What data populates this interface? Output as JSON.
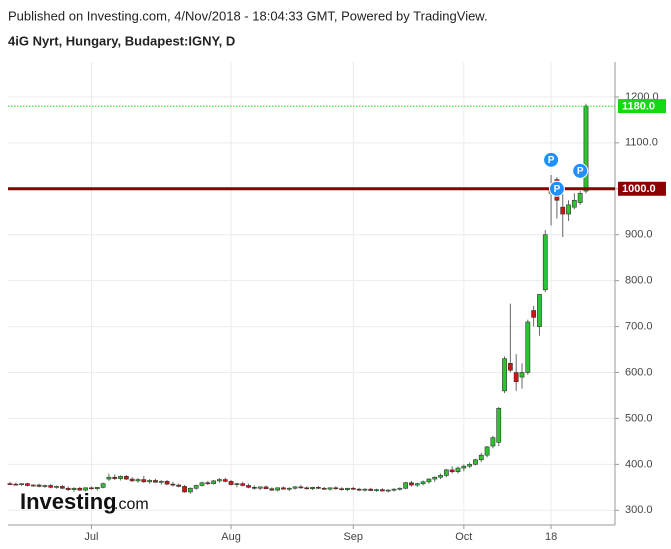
{
  "chart_data": {
    "type": "candlestick",
    "header": "Published on Investing.com, 4/Nov/2018 - 18:04:33 GMT, Powered by TradingView.",
    "title": "4iG Nyrt, Hungary, Budapest:IGNY, D",
    "logo": {
      "main": "Investing",
      "suffix": ".com"
    },
    "up_color": "#2fc12f",
    "down_color": "#d01414",
    "ylim": [
      268,
      1276
    ],
    "yticks": [
      {
        "value": 300,
        "label": "300.0"
      },
      {
        "value": 400,
        "label": "400.0"
      },
      {
        "value": 500,
        "label": "500.0"
      },
      {
        "value": 600,
        "label": "600.0"
      },
      {
        "value": 700,
        "label": "700.0"
      },
      {
        "value": 800,
        "label": "800.0"
      },
      {
        "value": 900,
        "label": "900.0"
      },
      {
        "value": 1000,
        "label": "1000.0"
      },
      {
        "value": 1100,
        "label": "1100.0"
      },
      {
        "value": 1200,
        "label": "1200.0"
      }
    ],
    "grid": true,
    "lines": [
      {
        "value": 1180,
        "label": "1180.0",
        "color": "#12d912",
        "style": "dotted"
      },
      {
        "value": 1000,
        "label": "1000.0",
        "color": "#8b0000",
        "style": "solid"
      }
    ],
    "markers": [
      {
        "label": "P",
        "candle": 93,
        "value": 1063
      },
      {
        "label": "P",
        "candle": 94,
        "value": 1000
      },
      {
        "label": "P",
        "candle": 98,
        "value": 1039
      }
    ],
    "categories": [
      null,
      null,
      null,
      null,
      null,
      null,
      null,
      null,
      null,
      null,
      null,
      null,
      null,
      null,
      "Jul",
      null,
      null,
      null,
      null,
      null,
      null,
      null,
      null,
      null,
      null,
      null,
      null,
      null,
      null,
      null,
      null,
      null,
      null,
      null,
      null,
      null,
      null,
      null,
      "Aug",
      null,
      null,
      null,
      null,
      null,
      null,
      null,
      null,
      null,
      null,
      null,
      null,
      null,
      null,
      null,
      null,
      null,
      null,
      null,
      null,
      "Sep",
      null,
      null,
      null,
      null,
      null,
      null,
      null,
      null,
      null,
      null,
      null,
      null,
      null,
      null,
      null,
      null,
      null,
      null,
      "Oct",
      null,
      null,
      null,
      null,
      null,
      null,
      null,
      null,
      null,
      null,
      null,
      null,
      null,
      null,
      "18",
      null,
      null,
      null,
      null,
      null,
      null,
      null
    ],
    "candles": [
      [
        358,
        362,
        355,
        357
      ],
      [
        357,
        360,
        354,
        356
      ],
      [
        356,
        359,
        353,
        358
      ],
      [
        358,
        360,
        352,
        354
      ],
      [
        354,
        357,
        351,
        355
      ],
      [
        355,
        358,
        350,
        352
      ],
      [
        352,
        356,
        349,
        354
      ],
      [
        354,
        357,
        348,
        350
      ],
      [
        350,
        354,
        347,
        352
      ],
      [
        352,
        355,
        346,
        348
      ],
      [
        348,
        352,
        342,
        345
      ],
      [
        345,
        350,
        340,
        348
      ],
      [
        348,
        351,
        342,
        344
      ],
      [
        344,
        350,
        341,
        349
      ],
      [
        349,
        352,
        345,
        347
      ],
      [
        347,
        351,
        343,
        350
      ],
      [
        350,
        360,
        348,
        358
      ],
      [
        368,
        380,
        364,
        372
      ],
      [
        372,
        378,
        366,
        369
      ],
      [
        369,
        376,
        365,
        374
      ],
      [
        374,
        377,
        366,
        368
      ],
      [
        368,
        372,
        362,
        364
      ],
      [
        364,
        370,
        360,
        367
      ],
      [
        367,
        375,
        360,
        362
      ],
      [
        362,
        368,
        358,
        365
      ],
      [
        365,
        369,
        360,
        361
      ],
      [
        361,
        366,
        356,
        363
      ],
      [
        363,
        366,
        355,
        357
      ],
      [
        357,
        362,
        352,
        355
      ],
      [
        355,
        358,
        350,
        352
      ],
      [
        352,
        355,
        338,
        340
      ],
      [
        340,
        350,
        336,
        348
      ],
      [
        348,
        356,
        345,
        354
      ],
      [
        354,
        362,
        352,
        360
      ],
      [
        360,
        364,
        355,
        358
      ],
      [
        358,
        366,
        356,
        364
      ],
      [
        364,
        370,
        360,
        367
      ],
      [
        367,
        371,
        361,
        363
      ],
      [
        363,
        366,
        354,
        356
      ],
      [
        356,
        360,
        350,
        358
      ],
      [
        358,
        362,
        352,
        354
      ],
      [
        354,
        358,
        348,
        350
      ],
      [
        350,
        354,
        345,
        348
      ],
      [
        348,
        352,
        344,
        351
      ],
      [
        351,
        354,
        346,
        347
      ],
      [
        347,
        350,
        342,
        344
      ],
      [
        344,
        350,
        341,
        349
      ],
      [
        349,
        352,
        345,
        346
      ],
      [
        346,
        350,
        342,
        348
      ],
      [
        348,
        353,
        345,
        351
      ],
      [
        351,
        355,
        347,
        349
      ],
      [
        349,
        352,
        345,
        347
      ],
      [
        347,
        351,
        344,
        350
      ],
      [
        350,
        353,
        346,
        348
      ],
      [
        348,
        351,
        344,
        346
      ],
      [
        346,
        350,
        343,
        349
      ],
      [
        349,
        352,
        345,
        347
      ],
      [
        347,
        350,
        343,
        345
      ],
      [
        345,
        349,
        342,
        348
      ],
      [
        348,
        351,
        344,
        346
      ],
      [
        346,
        349,
        342,
        344
      ],
      [
        344,
        348,
        341,
        346
      ],
      [
        346,
        349,
        342,
        343
      ],
      [
        343,
        347,
        340,
        345
      ],
      [
        345,
        348,
        341,
        342
      ],
      [
        342,
        346,
        339,
        344
      ],
      [
        344,
        348,
        341,
        346
      ],
      [
        346,
        350,
        343,
        348
      ],
      [
        348,
        362,
        346,
        360
      ],
      [
        360,
        364,
        352,
        355
      ],
      [
        355,
        360,
        351,
        358
      ],
      [
        358,
        365,
        354,
        362
      ],
      [
        362,
        370,
        358,
        368
      ],
      [
        368,
        374,
        362,
        372
      ],
      [
        372,
        380,
        368,
        376
      ],
      [
        376,
        390,
        372,
        388
      ],
      [
        388,
        396,
        380,
        384
      ],
      [
        384,
        395,
        380,
        392
      ],
      [
        392,
        400,
        385,
        396
      ],
      [
        396,
        404,
        392,
        400
      ],
      [
        400,
        412,
        398,
        410
      ],
      [
        410,
        425,
        405,
        420
      ],
      [
        420,
        440,
        415,
        438
      ],
      [
        440,
        462,
        435,
        458
      ],
      [
        448,
        525,
        440,
        522
      ],
      [
        560,
        635,
        555,
        630
      ],
      [
        620,
        750,
        600,
        605
      ],
      [
        600,
        640,
        560,
        580
      ],
      [
        590,
        620,
        565,
        600
      ],
      [
        600,
        715,
        595,
        710
      ],
      [
        735,
        745,
        700,
        720
      ],
      [
        700,
        770,
        680,
        770
      ],
      [
        780,
        910,
        775,
        900
      ],
      [
        990,
        1030,
        920,
        1000
      ],
      [
        1020,
        1025,
        935,
        975
      ],
      [
        960,
        1000,
        895,
        945
      ],
      [
        945,
        975,
        930,
        965
      ],
      [
        960,
        990,
        955,
        975
      ],
      [
        970,
        995,
        965,
        990
      ],
      [
        995,
        1185,
        990,
        1180
      ]
    ]
  }
}
